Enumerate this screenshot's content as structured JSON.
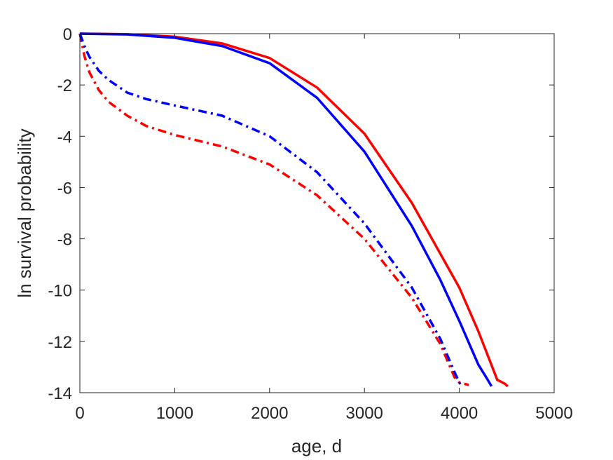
{
  "chart_data": {
    "type": "line",
    "title": "",
    "xlabel": "age, d",
    "ylabel": "ln survival probability",
    "xlim": [
      0,
      5000
    ],
    "ylim": [
      -14,
      0
    ],
    "xticks": [
      0,
      1000,
      2000,
      3000,
      4000,
      5000
    ],
    "yticks": [
      0,
      -2,
      -4,
      -6,
      -8,
      -10,
      -12,
      -14
    ],
    "xtick_labels": [
      "0",
      "1000",
      "2000",
      "3000",
      "4000",
      "5000"
    ],
    "ytick_labels": [
      "0",
      "-2",
      "-4",
      "-6",
      "-8",
      "-10",
      "-12",
      "-14"
    ],
    "grid": false,
    "legend": "none",
    "series": [
      {
        "color": "#ff0000",
        "style": "solid",
        "points": [
          [
            0,
            0
          ],
          [
            500,
            -0.02
          ],
          [
            1000,
            -0.12
          ],
          [
            1500,
            -0.38
          ],
          [
            2000,
            -0.95
          ],
          [
            2500,
            -2.1
          ],
          [
            3000,
            -3.9
          ],
          [
            3500,
            -6.6
          ],
          [
            4000,
            -9.9
          ],
          [
            4200,
            -11.6
          ],
          [
            4400,
            -13.5
          ],
          [
            4480,
            -13.65
          ],
          [
            4510,
            -13.75
          ]
        ]
      },
      {
        "color": "#0000ff",
        "style": "solid",
        "points": [
          [
            0,
            0
          ],
          [
            500,
            -0.03
          ],
          [
            1000,
            -0.16
          ],
          [
            1500,
            -0.48
          ],
          [
            2000,
            -1.15
          ],
          [
            2500,
            -2.5
          ],
          [
            3000,
            -4.6
          ],
          [
            3500,
            -7.5
          ],
          [
            3800,
            -9.6
          ],
          [
            4000,
            -11.2
          ],
          [
            4200,
            -12.9
          ],
          [
            4300,
            -13.5
          ],
          [
            4340,
            -13.75
          ]
        ]
      },
      {
        "color": "#ff0000",
        "style": "dashdot",
        "points": [
          [
            0,
            0
          ],
          [
            50,
            -0.9
          ],
          [
            100,
            -1.5
          ],
          [
            200,
            -2.2
          ],
          [
            300,
            -2.65
          ],
          [
            500,
            -3.2
          ],
          [
            700,
            -3.6
          ],
          [
            1000,
            -3.95
          ],
          [
            1500,
            -4.4
          ],
          [
            2000,
            -5.1
          ],
          [
            2500,
            -6.3
          ],
          [
            3000,
            -8.0
          ],
          [
            3500,
            -10.3
          ],
          [
            3800,
            -12.1
          ],
          [
            3950,
            -13.4
          ],
          [
            4000,
            -13.6
          ],
          [
            4050,
            -13.65
          ],
          [
            4100,
            -13.7
          ]
        ]
      },
      {
        "color": "#0000ff",
        "style": "dashdot",
        "points": [
          [
            0,
            0
          ],
          [
            50,
            -0.5
          ],
          [
            100,
            -0.9
          ],
          [
            200,
            -1.45
          ],
          [
            300,
            -1.8
          ],
          [
            500,
            -2.3
          ],
          [
            700,
            -2.55
          ],
          [
            1000,
            -2.8
          ],
          [
            1500,
            -3.2
          ],
          [
            2000,
            -4.0
          ],
          [
            2500,
            -5.4
          ],
          [
            3000,
            -7.4
          ],
          [
            3500,
            -9.9
          ],
          [
            3800,
            -11.9
          ],
          [
            3950,
            -13.2
          ],
          [
            4020,
            -13.75
          ]
        ]
      }
    ]
  }
}
